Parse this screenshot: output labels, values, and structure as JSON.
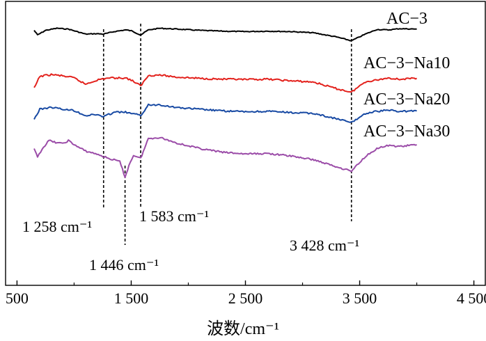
{
  "chart_data": {
    "type": "line",
    "title": "",
    "xlabel": "波数/cm⁻¹",
    "ylabel": "",
    "xlim": [
      400,
      4600
    ],
    "xticks": [
      500,
      1500,
      2500,
      3500,
      4500
    ],
    "xtick_labels": [
      "500",
      "1 500",
      "2 500",
      "3 500",
      "4 500"
    ],
    "grid": false,
    "legend": "series labels placed at right end of each curve",
    "series": [
      {
        "name": "AC−3",
        "color": "#000000",
        "points": [
          [
            650,
            0.12
          ],
          [
            680,
            0.34
          ],
          [
            750,
            0.12
          ],
          [
            850,
            0.02
          ],
          [
            950,
            0.06
          ],
          [
            1100,
            0.3
          ],
          [
            1200,
            0.28
          ],
          [
            1258,
            0.3
          ],
          [
            1350,
            0.18
          ],
          [
            1450,
            0.1
          ],
          [
            1500,
            0.14
          ],
          [
            1583,
            0.34
          ],
          [
            1650,
            0.1
          ],
          [
            1750,
            0.02
          ],
          [
            1900,
            0.06
          ],
          [
            2100,
            0.12
          ],
          [
            2300,
            0.16
          ],
          [
            2500,
            0.18
          ],
          [
            2700,
            0.16
          ],
          [
            2900,
            0.18
          ],
          [
            3100,
            0.24
          ],
          [
            3300,
            0.44
          ],
          [
            3428,
            0.62
          ],
          [
            3550,
            0.3
          ],
          [
            3650,
            0.08
          ],
          [
            3750,
            0.1
          ],
          [
            3850,
            0.04
          ],
          [
            4000,
            0.06
          ]
        ]
      },
      {
        "name": "AC−3−Na10",
        "color": "#e3211c",
        "points": [
          [
            650,
            0.7
          ],
          [
            700,
            0.12
          ],
          [
            800,
            0.04
          ],
          [
            900,
            0.1
          ],
          [
            1000,
            0.2
          ],
          [
            1100,
            0.5
          ],
          [
            1200,
            0.3
          ],
          [
            1300,
            0.2
          ],
          [
            1450,
            0.2
          ],
          [
            1500,
            0.3
          ],
          [
            1583,
            0.58
          ],
          [
            1650,
            0.08
          ],
          [
            1750,
            0.06
          ],
          [
            1900,
            0.16
          ],
          [
            2100,
            0.22
          ],
          [
            2300,
            0.26
          ],
          [
            2500,
            0.28
          ],
          [
            2700,
            0.26
          ],
          [
            2900,
            0.34
          ],
          [
            3100,
            0.4
          ],
          [
            3300,
            0.72
          ],
          [
            3428,
            0.88
          ],
          [
            3550,
            0.38
          ],
          [
            3650,
            0.3
          ],
          [
            3750,
            0.2
          ],
          [
            3850,
            0.26
          ],
          [
            4000,
            0.22
          ]
        ]
      },
      {
        "name": "AC−3−Na20",
        "color": "#1749a3",
        "points": [
          [
            650,
            0.78
          ],
          [
            700,
            0.3
          ],
          [
            800,
            0.2
          ],
          [
            900,
            0.3
          ],
          [
            1000,
            0.36
          ],
          [
            1100,
            0.6
          ],
          [
            1200,
            0.55
          ],
          [
            1258,
            0.66
          ],
          [
            1350,
            0.44
          ],
          [
            1450,
            0.44
          ],
          [
            1583,
            0.6
          ],
          [
            1650,
            0.1
          ],
          [
            1750,
            0.08
          ],
          [
            1900,
            0.22
          ],
          [
            2100,
            0.3
          ],
          [
            2300,
            0.38
          ],
          [
            2500,
            0.42
          ],
          [
            2700,
            0.4
          ],
          [
            2900,
            0.46
          ],
          [
            3100,
            0.5
          ],
          [
            3300,
            0.76
          ],
          [
            3428,
            0.94
          ],
          [
            3550,
            0.5
          ],
          [
            3650,
            0.4
          ],
          [
            3750,
            0.34
          ],
          [
            3850,
            0.4
          ],
          [
            4000,
            0.38
          ]
        ]
      },
      {
        "name": "AC−3−Na30",
        "color": "#9b4ca8",
        "points": [
          [
            650,
            1.02
          ],
          [
            680,
            1.38
          ],
          [
            720,
            1.0
          ],
          [
            780,
            0.6
          ],
          [
            850,
            0.7
          ],
          [
            900,
            0.75
          ],
          [
            950,
            0.6
          ],
          [
            1000,
            0.8
          ],
          [
            1100,
            1.1
          ],
          [
            1200,
            1.25
          ],
          [
            1300,
            1.45
          ],
          [
            1400,
            1.6
          ],
          [
            1446,
            2.35
          ],
          [
            1480,
            1.8
          ],
          [
            1520,
            1.3
          ],
          [
            1583,
            1.45
          ],
          [
            1650,
            0.5
          ],
          [
            1750,
            0.45
          ],
          [
            1900,
            0.72
          ],
          [
            2100,
            0.98
          ],
          [
            2300,
            1.16
          ],
          [
            2500,
            1.24
          ],
          [
            2700,
            1.22
          ],
          [
            2900,
            1.34
          ],
          [
            3100,
            1.52
          ],
          [
            3300,
            1.86
          ],
          [
            3428,
            2.06
          ],
          [
            3550,
            1.36
          ],
          [
            3650,
            0.98
          ],
          [
            3750,
            0.84
          ],
          [
            3850,
            0.88
          ],
          [
            4000,
            0.8
          ]
        ]
      }
    ],
    "series_offsets": [
      0,
      2.2,
      3.6,
      4.8
    ],
    "annotations": [
      {
        "x": 1258,
        "text": "1 258 cm⁻¹"
      },
      {
        "x": 1446,
        "text": "1 446 cm⁻¹"
      },
      {
        "x": 1583,
        "text": "1 583 cm⁻¹"
      },
      {
        "x": 3428,
        "text": "3 428 cm⁻¹"
      }
    ],
    "colors": {
      "axis": "#000000",
      "reference_line": "#000000"
    }
  }
}
